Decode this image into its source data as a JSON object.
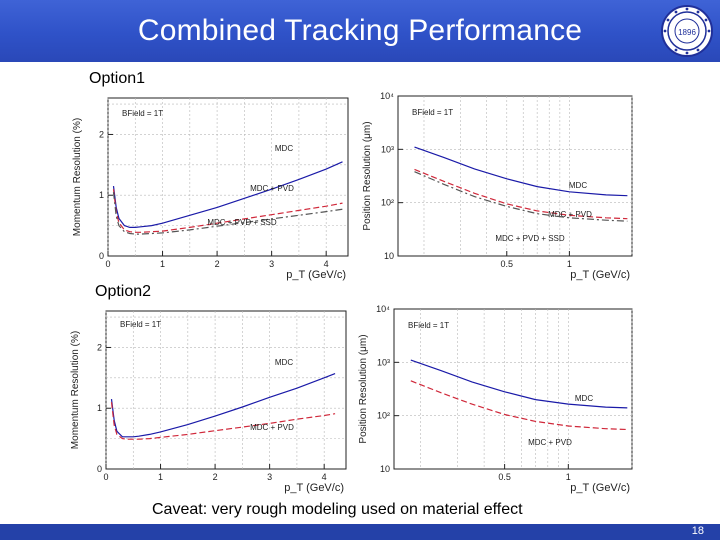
{
  "slide": {
    "title": "Combined Tracking Performance",
    "caveat": "Caveat: very rough modeling used on material effect",
    "page_number": "18",
    "logo_text": "1896",
    "colors": {
      "title_bar": "#2f52c8",
      "footer": "#2441a8",
      "mdc": "#1a1aa8",
      "pvd": "#d0283a",
      "ssd": "#555555"
    }
  },
  "options": [
    {
      "label": "Option1"
    },
    {
      "label": "Option2"
    }
  ],
  "chart_data": [
    {
      "id": "opt1-momentum",
      "type": "line",
      "ylabel": "Momentum Resolution (%)",
      "xlabel": "p_T (GeV/c)",
      "annotation": "BField = 1T",
      "xlim": [
        0,
        4.4
      ],
      "ylim": [
        0,
        2.6
      ],
      "xticks": [
        0,
        1,
        2,
        3,
        4
      ],
      "yticks": [
        0,
        1,
        2
      ],
      "series": [
        {
          "name": "MDC",
          "style": "solid",
          "color": "#1a1aa8",
          "x": [
            0.1,
            0.15,
            0.2,
            0.3,
            0.4,
            0.5,
            0.6,
            0.8,
            1.0,
            1.5,
            2.0,
            2.5,
            3.0,
            3.5,
            4.0,
            4.3
          ],
          "y": [
            1.15,
            0.8,
            0.62,
            0.5,
            0.47,
            0.47,
            0.48,
            0.5,
            0.54,
            0.67,
            0.8,
            0.95,
            1.1,
            1.26,
            1.43,
            1.55
          ]
        },
        {
          "name": "MDC + PVD",
          "style": "dashed",
          "color": "#d0283a",
          "x": [
            0.1,
            0.15,
            0.2,
            0.3,
            0.4,
            0.5,
            0.6,
            0.8,
            1.0,
            1.5,
            2.0,
            2.5,
            3.0,
            3.5,
            4.0,
            4.3
          ],
          "y": [
            1.1,
            0.72,
            0.55,
            0.43,
            0.4,
            0.39,
            0.39,
            0.4,
            0.41,
            0.47,
            0.54,
            0.61,
            0.68,
            0.75,
            0.82,
            0.87
          ]
        },
        {
          "name": "MDC + PVD + SSD",
          "style": "dashdot",
          "color": "#555555",
          "x": [
            0.1,
            0.15,
            0.2,
            0.3,
            0.4,
            0.5,
            0.6,
            0.8,
            1.0,
            1.5,
            2.0,
            2.5,
            3.0,
            3.5,
            4.0,
            4.3
          ],
          "y": [
            1.05,
            0.66,
            0.5,
            0.4,
            0.37,
            0.36,
            0.36,
            0.37,
            0.38,
            0.43,
            0.49,
            0.55,
            0.61,
            0.67,
            0.73,
            0.77
          ]
        }
      ]
    },
    {
      "id": "opt1-position",
      "type": "line",
      "ylabel": "Position Resolution (μm)",
      "xlabel": "p_T (GeV/c)",
      "annotation": "BField = 1T",
      "xscale": "log",
      "yscale": "log",
      "xlim": [
        0.15,
        2.0
      ],
      "ylim": [
        10,
        10000
      ],
      "xticks": [
        0.5,
        1
      ],
      "yticks": [
        10,
        100,
        1000,
        10000
      ],
      "ytick_labels": [
        "10",
        "10²",
        "10³",
        "10⁴"
      ],
      "series": [
        {
          "name": "MDC",
          "style": "solid",
          "color": "#1a1aa8",
          "x": [
            0.18,
            0.25,
            0.35,
            0.5,
            0.7,
            1.0,
            1.5,
            1.9
          ],
          "y": [
            1100,
            700,
            430,
            280,
            200,
            160,
            140,
            135
          ]
        },
        {
          "name": "MDC + PVD",
          "style": "dashed",
          "color": "#d0283a",
          "x": [
            0.18,
            0.25,
            0.35,
            0.5,
            0.7,
            1.0,
            1.5,
            1.9
          ],
          "y": [
            420,
            250,
            150,
            95,
            70,
            58,
            52,
            50
          ]
        },
        {
          "name": "MDC + PVD + SSD",
          "style": "dashdot",
          "color": "#555555",
          "x": [
            0.18,
            0.25,
            0.35,
            0.5,
            0.7,
            1.0,
            1.5,
            1.9
          ],
          "y": [
            380,
            220,
            130,
            85,
            62,
            52,
            47,
            45
          ]
        }
      ]
    },
    {
      "id": "opt2-momentum",
      "type": "line",
      "ylabel": "Momentum Resolution (%)",
      "xlabel": "p_T (GeV/c)",
      "annotation": "BField = 1T",
      "xlim": [
        0,
        4.4
      ],
      "ylim": [
        0,
        2.6
      ],
      "xticks": [
        0,
        1,
        2,
        3,
        4
      ],
      "yticks": [
        0,
        1,
        2
      ],
      "series": [
        {
          "name": "MDC",
          "style": "solid",
          "color": "#1a1aa8",
          "x": [
            0.1,
            0.15,
            0.2,
            0.3,
            0.4,
            0.5,
            0.6,
            0.8,
            1.0,
            1.5,
            2.0,
            2.5,
            3.0,
            3.5,
            4.0,
            4.2
          ],
          "y": [
            1.15,
            0.8,
            0.62,
            0.53,
            0.53,
            0.53,
            0.54,
            0.57,
            0.61,
            0.73,
            0.87,
            1.02,
            1.18,
            1.33,
            1.5,
            1.57
          ]
        },
        {
          "name": "MDC + PVD",
          "style": "dashed",
          "color": "#d0283a",
          "x": [
            0.1,
            0.15,
            0.2,
            0.3,
            0.4,
            0.5,
            0.6,
            0.8,
            1.0,
            1.5,
            2.0,
            2.5,
            3.0,
            3.5,
            4.0,
            4.2
          ],
          "y": [
            1.1,
            0.72,
            0.57,
            0.5,
            0.49,
            0.49,
            0.49,
            0.5,
            0.52,
            0.57,
            0.63,
            0.69,
            0.75,
            0.82,
            0.88,
            0.91
          ]
        }
      ]
    },
    {
      "id": "opt2-position",
      "type": "line",
      "ylabel": "Position Resolution (μm)",
      "xlabel": "p_T (GeV/c)",
      "annotation": "BField = 1T",
      "xscale": "log",
      "yscale": "log",
      "xlim": [
        0.15,
        2.0
      ],
      "ylim": [
        10,
        10000
      ],
      "xticks": [
        0.5,
        1
      ],
      "yticks": [
        10,
        100,
        1000,
        10000
      ],
      "ytick_labels": [
        "10",
        "10²",
        "10³",
        "10⁴"
      ],
      "series": [
        {
          "name": "MDC",
          "style": "solid",
          "color": "#1a1aa8",
          "x": [
            0.18,
            0.25,
            0.35,
            0.5,
            0.7,
            1.0,
            1.5,
            1.9
          ],
          "y": [
            1100,
            700,
            430,
            280,
            200,
            165,
            145,
            140
          ]
        },
        {
          "name": "MDC + PVD",
          "style": "dashed",
          "color": "#d0283a",
          "x": [
            0.18,
            0.25,
            0.35,
            0.5,
            0.7,
            1.0,
            1.5,
            1.9
          ],
          "y": [
            450,
            270,
            165,
            105,
            78,
            64,
            57,
            55
          ]
        }
      ]
    }
  ]
}
